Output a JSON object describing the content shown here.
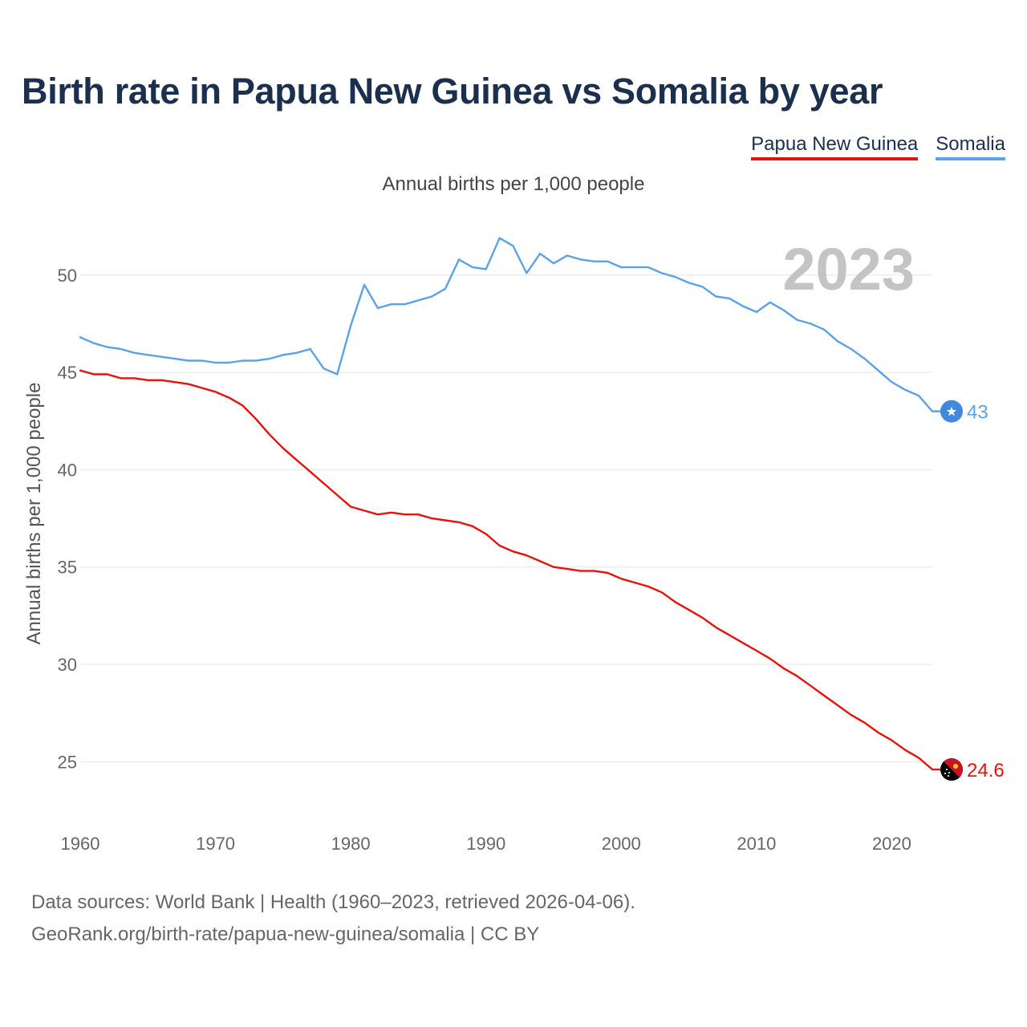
{
  "title": "Birth rate in Papua New Guinea vs Somalia by year",
  "legend": [
    "Papua New Guinea",
    "Somalia"
  ],
  "source": {
    "line1": "Data sources: World Bank | Health (1960–2023, retrieved 2026-04-06).",
    "line2": "GeoRank.org/birth-rate/papua-new-guinea/somalia | CC BY"
  },
  "chart_data": {
    "type": "line",
    "title": "Birth rate in Papua New Guinea vs Somalia by year",
    "subtitle": "Annual births per 1,000 people",
    "ylabel": "Annual births per 1,000 people",
    "xlabel": "",
    "year_label": "2023",
    "xlim": [
      1960,
      2023
    ],
    "ylim": [
      22.5,
      53
    ],
    "x_ticks": [
      1960,
      1970,
      1980,
      1990,
      2000,
      2010,
      2020
    ],
    "y_ticks": [
      25,
      30,
      35,
      40,
      45,
      50
    ],
    "grid": true,
    "legend_position": "top-right",
    "x": [
      1960,
      1961,
      1962,
      1963,
      1964,
      1965,
      1966,
      1967,
      1968,
      1969,
      1970,
      1971,
      1972,
      1973,
      1974,
      1975,
      1976,
      1977,
      1978,
      1979,
      1980,
      1981,
      1982,
      1983,
      1984,
      1985,
      1986,
      1987,
      1988,
      1989,
      1990,
      1991,
      1992,
      1993,
      1994,
      1995,
      1996,
      1997,
      1998,
      1999,
      2000,
      2001,
      2002,
      2003,
      2004,
      2005,
      2006,
      2007,
      2008,
      2009,
      2010,
      2011,
      2012,
      2013,
      2014,
      2015,
      2016,
      2017,
      2018,
      2019,
      2020,
      2021,
      2022,
      2023
    ],
    "series": [
      {
        "name": "Papua New Guinea",
        "color": "#e8120c",
        "end_label": "24.6",
        "values": [
          45.1,
          44.9,
          44.9,
          44.7,
          44.7,
          44.6,
          44.6,
          44.5,
          44.4,
          44.2,
          44.0,
          43.7,
          43.3,
          42.6,
          41.8,
          41.1,
          40.5,
          39.9,
          39.3,
          38.7,
          38.1,
          37.9,
          37.7,
          37.8,
          37.7,
          37.7,
          37.5,
          37.4,
          37.3,
          37.1,
          36.7,
          36.1,
          35.8,
          35.6,
          35.3,
          35.0,
          34.9,
          34.8,
          34.8,
          34.7,
          34.4,
          34.2,
          34.0,
          33.7,
          33.2,
          32.8,
          32.4,
          31.9,
          31.5,
          31.1,
          30.7,
          30.3,
          29.8,
          29.4,
          28.9,
          28.4,
          27.9,
          27.4,
          27.0,
          26.5,
          26.1,
          25.6,
          25.2,
          24.6
        ]
      },
      {
        "name": "Somalia",
        "color": "#5ba3e6",
        "end_label": "43",
        "values": [
          46.8,
          46.5,
          46.3,
          46.2,
          46.0,
          45.9,
          45.8,
          45.7,
          45.6,
          45.6,
          45.5,
          45.5,
          45.6,
          45.6,
          45.7,
          45.9,
          46.0,
          46.2,
          45.2,
          44.9,
          47.4,
          49.5,
          48.3,
          48.5,
          48.5,
          48.7,
          48.9,
          49.3,
          50.8,
          50.4,
          50.3,
          51.9,
          51.5,
          50.1,
          51.1,
          50.6,
          51.0,
          50.8,
          50.7,
          50.7,
          50.4,
          50.4,
          50.4,
          50.1,
          49.9,
          49.6,
          49.4,
          48.9,
          48.8,
          48.4,
          48.1,
          48.6,
          48.2,
          47.7,
          47.5,
          47.2,
          46.6,
          46.2,
          45.7,
          45.1,
          44.5,
          44.1,
          43.8,
          43.0
        ]
      }
    ]
  }
}
